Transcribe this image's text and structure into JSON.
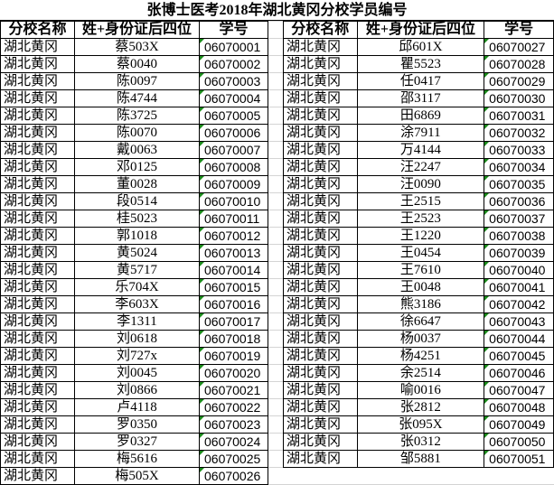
{
  "title": "张博士医考2018年湖北黄冈分校学员编号",
  "headers": [
    "分校名称",
    "姓+身份证后四位",
    "学号"
  ],
  "colors": {
    "comment_marker": "#1a8a1a"
  },
  "left_table": [
    [
      "湖北黄冈",
      "蔡503X",
      "06070001"
    ],
    [
      "湖北黄冈",
      "蔡0040",
      "06070002"
    ],
    [
      "湖北黄冈",
      "陈0097",
      "06070003"
    ],
    [
      "湖北黄冈",
      "陈4744",
      "06070004"
    ],
    [
      "湖北黄冈",
      "陈3725",
      "06070005"
    ],
    [
      "湖北黄冈",
      "陈0070",
      "06070006"
    ],
    [
      "湖北黄冈",
      "戴0063",
      "06070007"
    ],
    [
      "湖北黄冈",
      "邓0125",
      "06070008"
    ],
    [
      "湖北黄冈",
      "董0028",
      "06070009"
    ],
    [
      "湖北黄冈",
      "段0514",
      "06070010"
    ],
    [
      "湖北黄冈",
      "桂5023",
      "06070011"
    ],
    [
      "湖北黄冈",
      "郭1018",
      "06070012"
    ],
    [
      "湖北黄冈",
      "黄5024",
      "06070013"
    ],
    [
      "湖北黄冈",
      "黄5717",
      "06070014"
    ],
    [
      "湖北黄冈",
      "乐704X",
      "06070015"
    ],
    [
      "湖北黄冈",
      "李603X",
      "06070016"
    ],
    [
      "湖北黄冈",
      "李1311",
      "06070017"
    ],
    [
      "湖北黄冈",
      "刘0618",
      "06070018"
    ],
    [
      "湖北黄冈",
      "刘727x",
      "06070019"
    ],
    [
      "湖北黄冈",
      "刘0045",
      "06070020"
    ],
    [
      "湖北黄冈",
      "刘0866",
      "06070021"
    ],
    [
      "湖北黄冈",
      "卢4118",
      "06070022"
    ],
    [
      "湖北黄冈",
      "罗0350",
      "06070023"
    ],
    [
      "湖北黄冈",
      "罗0327",
      "06070024"
    ],
    [
      "湖北黄冈",
      "梅5616",
      "06070025"
    ],
    [
      "湖北黄冈",
      "梅505X",
      "06070026"
    ]
  ],
  "right_table": [
    [
      "湖北黄冈",
      "邱601X",
      "06070027"
    ],
    [
      "湖北黄冈",
      "瞿5523",
      "06070028"
    ],
    [
      "湖北黄冈",
      "任0417",
      "06070029"
    ],
    [
      "湖北黄冈",
      "邵3117",
      "06070030"
    ],
    [
      "湖北黄冈",
      "田6869",
      "06070031"
    ],
    [
      "湖北黄冈",
      "涂7911",
      "06070032"
    ],
    [
      "湖北黄冈",
      "万4144",
      "06070033"
    ],
    [
      "湖北黄冈",
      "汪2247",
      "06070034"
    ],
    [
      "湖北黄冈",
      "汪0090",
      "06070035"
    ],
    [
      "湖北黄冈",
      "王2515",
      "06070036"
    ],
    [
      "湖北黄冈",
      "王2523",
      "06070037"
    ],
    [
      "湖北黄冈",
      "王1220",
      "06070038"
    ],
    [
      "湖北黄冈",
      "王0454",
      "06070039"
    ],
    [
      "湖北黄冈",
      "王7610",
      "06070040"
    ],
    [
      "湖北黄冈",
      "王0048",
      "06070041"
    ],
    [
      "湖北黄冈",
      "熊3186",
      "06070042"
    ],
    [
      "湖北黄冈",
      "徐6647",
      "06070043"
    ],
    [
      "湖北黄冈",
      "杨0037",
      "06070044"
    ],
    [
      "湖北黄冈",
      "杨4251",
      "06070045"
    ],
    [
      "湖北黄冈",
      "余2514",
      "06070046"
    ],
    [
      "湖北黄冈",
      "喻0016",
      "06070047"
    ],
    [
      "湖北黄冈",
      "张2812",
      "06070048"
    ],
    [
      "湖北黄冈",
      "张095X",
      "06070049"
    ],
    [
      "湖北黄冈",
      "张0312",
      "06070050"
    ],
    [
      "湖北黄冈",
      "邹5881",
      "06070051"
    ]
  ]
}
